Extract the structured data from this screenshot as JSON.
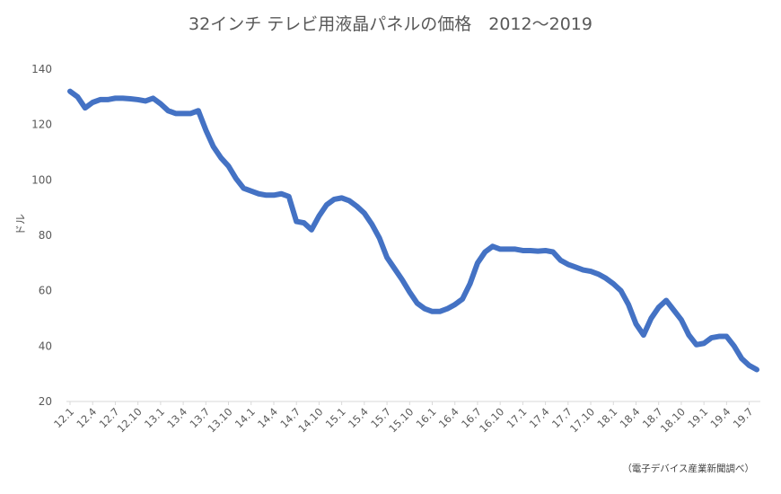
{
  "chart_data": {
    "type": "line",
    "title": "32インチ テレビ用液晶パネルの価格　2012〜2019",
    "xlabel": "",
    "ylabel": "ドル",
    "ylim": [
      20,
      140
    ],
    "yticks": [
      20,
      40,
      60,
      80,
      100,
      120,
      140
    ],
    "grid": false,
    "legend": "none",
    "line_color": "#4472C4",
    "source": "（電子デバイス産業新聞調べ）",
    "x_tick_labels": [
      "12.1",
      "12.4",
      "12.7",
      "12.10",
      "13.1",
      "13.4",
      "13.7",
      "13.10",
      "14.1",
      "14.4",
      "14.7",
      "14.10",
      "15.1",
      "15.4",
      "15.7",
      "15.10",
      "16.1",
      "16.4",
      "16.7",
      "16.10",
      "17.1",
      "17.4",
      "17.7",
      "17.10",
      "18.1",
      "18.4",
      "18.7",
      "18.10",
      "19.1",
      "19.4",
      "19.7"
    ],
    "series": [
      {
        "values": [
          132,
          130,
          126,
          128,
          129,
          129,
          129.5,
          129.5,
          129.3,
          129,
          128.5,
          129.5,
          127.5,
          125,
          124,
          124,
          124,
          125,
          118,
          112,
          108,
          105,
          100.5,
          97,
          96,
          95,
          94.5,
          94.5,
          95,
          94,
          85,
          84.5,
          82,
          87,
          91,
          93,
          93.5,
          92.5,
          90.5,
          88,
          84,
          79,
          72,
          68,
          64,
          59.5,
          55.5,
          53.5,
          52.5,
          52.5,
          53.5,
          55,
          57,
          62.5,
          70,
          74,
          76,
          75,
          75,
          75,
          74.5,
          74.5,
          74.3,
          74.5,
          74,
          71,
          69.5,
          68.5,
          67.5,
          67,
          66,
          64.5,
          62.5,
          60,
          55,
          48,
          44,
          50,
          54,
          56.5,
          53,
          49.5,
          44,
          40.5,
          41,
          43,
          43.5,
          43.5,
          40,
          35.5,
          33,
          31.5
        ]
      }
    ]
  }
}
